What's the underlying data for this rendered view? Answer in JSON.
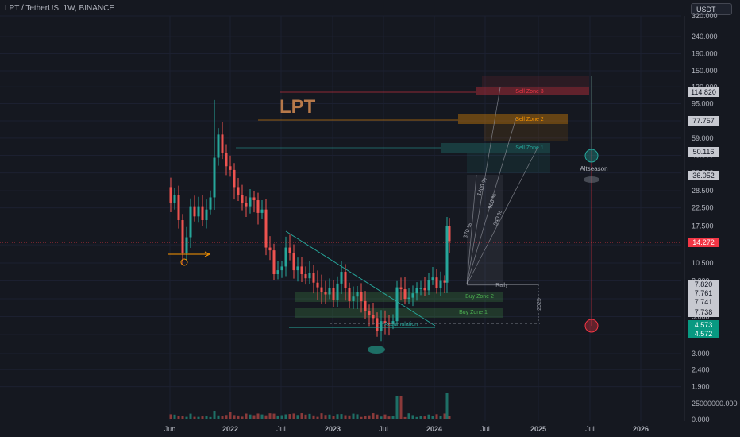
{
  "header": {
    "title": "LPT / TetherUS, 1W, BINANCE",
    "currency": "USDT"
  },
  "chart_data": {
    "type": "candlestick",
    "symbol": "LPT / TetherUS",
    "interval": "1W",
    "exchange": "BINANCE",
    "y_scale": "log",
    "y_ticks": [
      320,
      240,
      190,
      150,
      120,
      95,
      75,
      59,
      46.5,
      36.5,
      28.5,
      22.5,
      17.5,
      13.5,
      10.5,
      8.2,
      6.4,
      5.0,
      3.9,
      3.0,
      2.4,
      1.9
    ],
    "y_tick_labels": [
      "320.000",
      "240.000",
      "190.000",
      "150.000",
      "120.000",
      "95.000",
      "75.000",
      "59.000",
      "46.500",
      "36.500",
      "28.500",
      "22.500",
      "17.500",
      "13.500",
      "10.500",
      "8.200",
      "6.400",
      "5.000",
      "3.900",
      "3.000",
      "2.400",
      "1.900"
    ],
    "x_labels": [
      "Jun",
      "2022",
      "Jul",
      "2023",
      "Jul",
      "2024",
      "Jul",
      "2025",
      "Jul",
      "2026"
    ],
    "volume_ticks": [
      "25000000.000",
      "0.000"
    ],
    "price_badges": [
      {
        "label": "114.820",
        "value": 114.82,
        "bg": "#c7c9d0",
        "fg": "#131722"
      },
      {
        "label": "77.757",
        "value": 77.757,
        "bg": "#c7c9d0",
        "fg": "#131722"
      },
      {
        "label": "50.116",
        "value": 50.116,
        "bg": "#c7c9d0",
        "fg": "#131722"
      },
      {
        "label": "36.052",
        "value": 36.052,
        "bg": "#c7c9d0",
        "fg": "#131722"
      },
      {
        "label": "14.272",
        "value": 14.272,
        "bg": "#f23645",
        "fg": "#ffffff"
      },
      {
        "label": "7.820",
        "value": 7.82,
        "bg": "#c7c9d0",
        "fg": "#131722"
      },
      {
        "label": "7.761",
        "value": 7.761,
        "bg": "#c7c9d0",
        "fg": "#131722"
      },
      {
        "label": "7.741",
        "value": 7.741,
        "bg": "#c7c9d0",
        "fg": "#131722"
      },
      {
        "label": "7.738",
        "value": 7.738,
        "bg": "#c7c9d0",
        "fg": "#131722"
      },
      {
        "label": "4.573",
        "value": 4.573,
        "bg": "#089981",
        "fg": "#ffffff"
      },
      {
        "label": "4.572",
        "value": 4.572,
        "bg": "#089981",
        "fg": "#ffffff"
      }
    ],
    "annotations": {
      "big_label": "LPT",
      "zones": [
        {
          "label": "Sell Zone 3",
          "color": "#f23645"
        },
        {
          "label": "Sell Zone 2",
          "color": "#ff9800"
        },
        {
          "label": "Sell Zone 1",
          "color": "#26a69a"
        },
        {
          "label": "Buy Zone 2",
          "color": "#4caf50"
        },
        {
          "label": "Buy Zone 1",
          "color": "#4caf50"
        }
      ],
      "percent_labels": [
        "370 %",
        "1400 %",
        "920 %",
        "540 %"
      ],
      "rally": "Rally",
      "accumulation": "Accumulation",
      "altseason": "Altseason",
      "year_label": "2025"
    },
    "colors": {
      "up": "#26a69a",
      "down": "#ef5350",
      "background": "#151820"
    }
  }
}
